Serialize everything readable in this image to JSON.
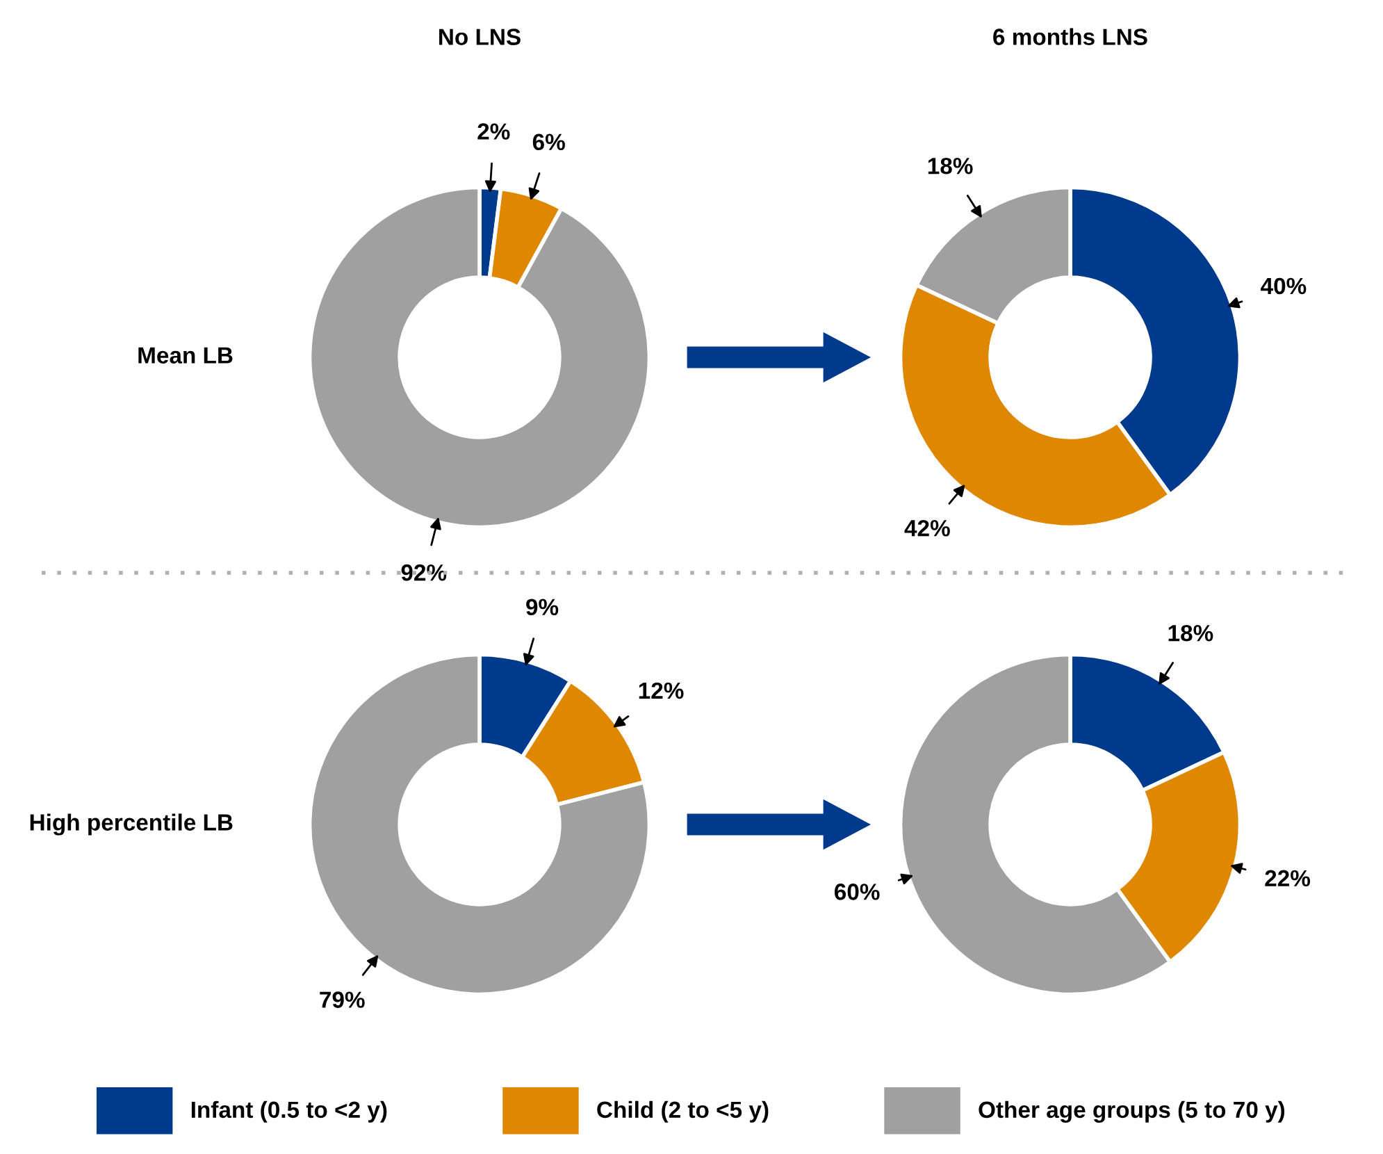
{
  "chart_data": [
    {
      "type": "donut",
      "title": "No LNS",
      "ylabel": "Mean LB",
      "categories": [
        "Infant (0.5 to <2 y)",
        "Child (2 to <5 y)",
        "Other age groups (5 to 70 y)"
      ],
      "values": [
        2,
        6,
        92
      ],
      "value_labels": [
        "2%",
        "6%",
        "92%"
      ],
      "colors": [
        "#003a8c",
        "#e08700",
        "#a0a0a0"
      ],
      "legend": "bottom"
    },
    {
      "type": "donut",
      "title": "6 months LNS",
      "values": [
        40,
        42,
        18
      ],
      "value_labels": [
        "40%",
        "42%",
        "18%"
      ],
      "colors": [
        "#003a8c",
        "#e08700",
        "#a0a0a0"
      ]
    },
    {
      "type": "donut",
      "ylabel": "High percentile LB",
      "values": [
        9,
        12,
        79
      ],
      "value_labels": [
        "9%",
        "12%",
        "79%"
      ],
      "colors": [
        "#003a8c",
        "#e08700",
        "#a0a0a0"
      ]
    },
    {
      "type": "donut",
      "values": [
        18,
        22,
        60
      ],
      "value_labels": [
        "18%",
        "22%",
        "60%"
      ],
      "colors": [
        "#003a8c",
        "#e08700",
        "#a0a0a0"
      ]
    }
  ]
}
